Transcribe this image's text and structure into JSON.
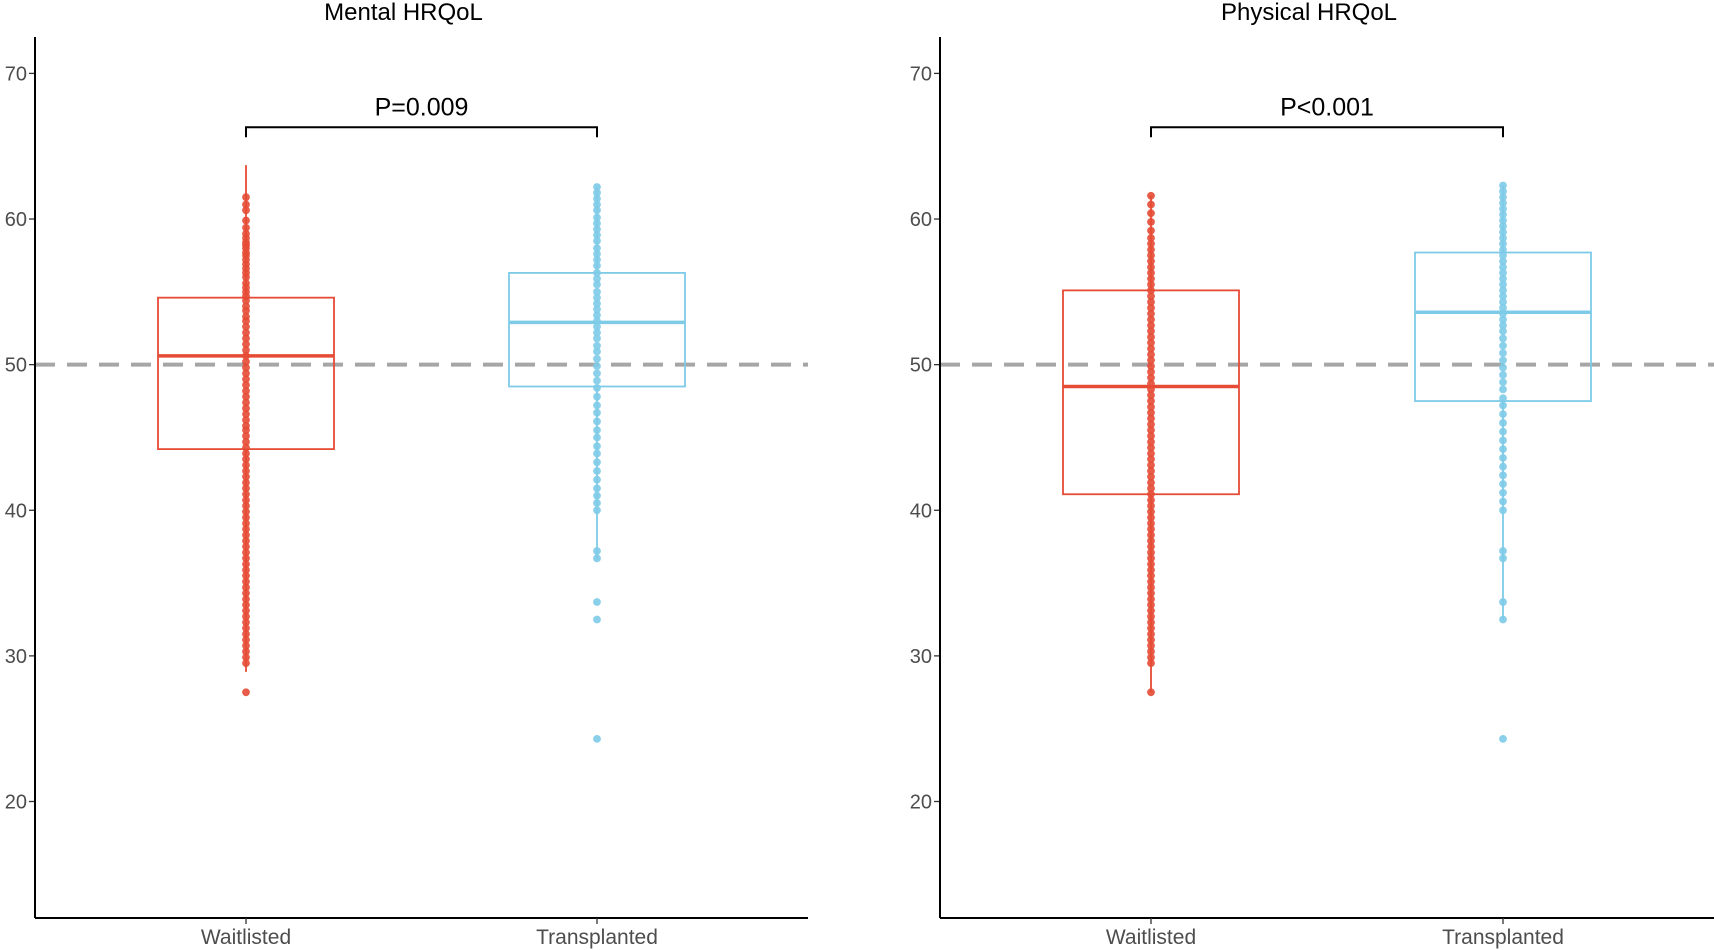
{
  "chart_data": [
    {
      "type": "box",
      "title": "Mental HRQoL",
      "xlabel": "",
      "ylabel": "",
      "categories": [
        "Waitlisted",
        "Transplanted"
      ],
      "ylim": [
        12,
        72.5
      ],
      "yticks": [
        20,
        30,
        40,
        50,
        60,
        70
      ],
      "reference_line": 50,
      "grid": false,
      "legend": "none",
      "boxes": [
        {
          "category": "Waitlisted",
          "color": "#e64b35",
          "q1": 44.2,
          "median": 50.6,
          "q3": 54.6,
          "whisker_low": 28.9,
          "whisker_high": 63.7,
          "points": [
            61.5,
            61.0,
            60.6,
            59.9,
            59.4,
            59.0,
            58.7,
            58.4,
            58.2,
            58.0,
            57.7,
            57.5,
            57.2,
            56.9,
            56.6,
            56.3,
            56.0,
            55.6,
            55.3,
            55.0,
            54.7,
            54.4,
            54.0,
            53.7,
            53.3,
            53.0,
            52.6,
            52.2,
            51.8,
            51.4,
            51.0,
            50.6,
            50.2,
            49.8,
            49.4,
            49.0,
            48.6,
            48.2,
            47.8,
            47.4,
            47.0,
            46.6,
            46.2,
            45.8,
            45.5,
            45.1,
            44.7,
            44.3,
            43.9,
            43.5,
            43.1,
            42.7,
            42.3,
            41.9,
            41.5,
            41.1,
            40.7,
            40.3,
            39.9,
            39.5,
            39.1,
            38.7,
            38.3,
            37.9,
            37.5,
            37.1,
            36.7,
            36.3,
            35.9,
            35.5,
            35.1,
            34.7,
            34.3,
            33.9,
            33.5,
            33.1,
            32.7,
            32.3,
            31.9,
            31.5,
            31.1,
            30.7,
            30.3,
            29.9,
            29.5,
            27.5
          ]
        },
        {
          "category": "Transplanted",
          "color": "#7ecbe8",
          "q1": 48.5,
          "median": 52.9,
          "q3": 56.3,
          "whisker_low": 36.6,
          "whisker_high": 62.2,
          "points": [
            62.2,
            61.8,
            61.4,
            61.0,
            60.6,
            60.1,
            59.7,
            59.3,
            58.9,
            58.5,
            58.0,
            57.6,
            57.2,
            56.8,
            56.3,
            55.9,
            55.5,
            55.0,
            54.6,
            54.2,
            53.8,
            53.4,
            53.0,
            52.6,
            52.2,
            51.8,
            51.3,
            50.9,
            50.4,
            49.9,
            49.4,
            48.9,
            48.4,
            47.8,
            47.2,
            46.7,
            46.1,
            45.5,
            45.0,
            44.4,
            43.9,
            43.3,
            42.7,
            42.1,
            41.5,
            41.0,
            40.5,
            40.0,
            37.2,
            36.7,
            33.7,
            32.5,
            24.3
          ]
        }
      ],
      "comparison": {
        "from": "Waitlisted",
        "to": "Transplanted",
        "y": 66.3,
        "label": "P=0.009"
      }
    },
    {
      "type": "box",
      "title": "Physical HRQoL",
      "xlabel": "",
      "ylabel": "",
      "categories": [
        "Waitlisted",
        "Transplanted"
      ],
      "ylim": [
        12,
        72.5
      ],
      "yticks": [
        20,
        30,
        40,
        50,
        60,
        70
      ],
      "reference_line": 50,
      "grid": false,
      "legend": "none",
      "boxes": [
        {
          "category": "Waitlisted",
          "color": "#e64b35",
          "q1": 41.1,
          "median": 48.5,
          "q3": 55.1,
          "whisker_low": 27.5,
          "whisker_high": 61.6,
          "points": [
            61.6,
            61.0,
            60.4,
            59.8,
            59.2,
            58.7,
            58.3,
            57.9,
            57.5,
            57.1,
            56.7,
            56.3,
            55.9,
            55.5,
            55.1,
            54.7,
            54.3,
            53.9,
            53.5,
            53.1,
            52.7,
            52.3,
            51.9,
            51.5,
            51.1,
            50.7,
            50.3,
            49.9,
            49.5,
            49.1,
            48.7,
            48.3,
            47.9,
            47.5,
            47.1,
            46.7,
            46.3,
            45.9,
            45.5,
            45.1,
            44.7,
            44.3,
            43.9,
            43.5,
            43.1,
            42.7,
            42.3,
            41.9,
            41.5,
            41.1,
            40.7,
            40.3,
            39.9,
            39.5,
            39.1,
            38.7,
            38.3,
            37.9,
            37.5,
            37.1,
            36.7,
            36.3,
            35.9,
            35.5,
            35.1,
            34.7,
            34.3,
            33.9,
            33.5,
            33.1,
            32.7,
            32.3,
            31.9,
            31.5,
            31.1,
            30.7,
            30.3,
            29.9,
            29.5,
            27.5
          ]
        },
        {
          "category": "Transplanted",
          "color": "#7ecbe8",
          "q1": 47.5,
          "median": 53.6,
          "q3": 57.7,
          "whisker_low": 32.5,
          "whisker_high": 62.3,
          "points": [
            62.3,
            61.9,
            61.5,
            61.1,
            60.7,
            60.3,
            59.9,
            59.5,
            59.1,
            58.7,
            58.3,
            57.9,
            57.5,
            57.1,
            56.7,
            56.3,
            55.9,
            55.5,
            55.1,
            54.7,
            54.3,
            53.9,
            53.5,
            53.1,
            52.7,
            52.3,
            51.8,
            51.3,
            50.8,
            50.3,
            49.8,
            49.3,
            48.8,
            48.3,
            47.7,
            47.2,
            46.6,
            46.0,
            45.4,
            44.8,
            44.2,
            43.6,
            43.0,
            42.4,
            41.8,
            41.2,
            40.6,
            40.0,
            37.2,
            36.7,
            33.7,
            32.5,
            24.3
          ]
        }
      ],
      "comparison": {
        "from": "Waitlisted",
        "to": "Transplanted",
        "y": 66.3,
        "label": "P<0.001"
      }
    }
  ]
}
